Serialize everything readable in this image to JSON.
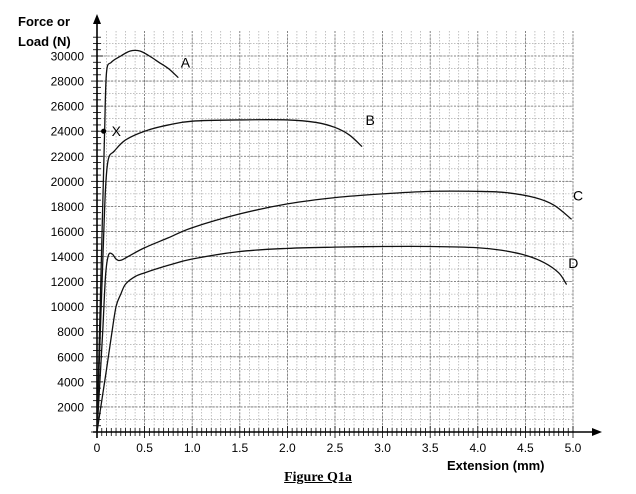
{
  "figure": {
    "caption": "Figure Q1a"
  },
  "chart_data": {
    "type": "line",
    "title": "",
    "ylabel_line1": "Force or",
    "ylabel_line2": "Load (N)",
    "xlabel": "Extension (mm)",
    "xlim": [
      0,
      5.0
    ],
    "ylim": [
      0,
      31000
    ],
    "x_ticks": [
      0,
      0.5,
      1.0,
      1.5,
      2.0,
      2.5,
      3.0,
      3.5,
      4.0,
      4.5,
      5.0
    ],
    "x_tick_labels": [
      "0",
      "0.5",
      "1.0",
      "1.5",
      "2.0",
      "2.5",
      "3.0",
      "3.5",
      "4.0",
      "4.5",
      "5.0"
    ],
    "y_ticks": [
      2000,
      4000,
      6000,
      8000,
      10000,
      12000,
      14000,
      16000,
      18000,
      20000,
      22000,
      24000,
      26000,
      28000,
      30000
    ],
    "y_tick_labels": [
      "2000",
      "4000",
      "6000",
      "8000",
      "10000",
      "12000",
      "14000",
      "16000",
      "18000",
      "20000",
      "22000",
      "24000",
      "26000",
      "28000",
      "30000"
    ],
    "grid": true,
    "series": [
      {
        "name": "A",
        "x": [
          0,
          0.03,
          0.06,
          0.08,
          0.1,
          0.15,
          0.25,
          0.35,
          0.45,
          0.55,
          0.65,
          0.75,
          0.85
        ],
        "y": [
          0,
          9000,
          18000,
          24000,
          28700,
          29500,
          30000,
          30400,
          30400,
          30000,
          29500,
          29000,
          28300
        ]
      },
      {
        "name": "B",
        "x": [
          0,
          0.03,
          0.06,
          0.09,
          0.12,
          0.18,
          0.3,
          0.5,
          0.75,
          1.0,
          1.5,
          2.0,
          2.3,
          2.5,
          2.65,
          2.78
        ],
        "y": [
          0,
          7000,
          13500,
          19500,
          21800,
          22400,
          23300,
          24000,
          24500,
          24800,
          24900,
          24900,
          24700,
          24300,
          23700,
          22800
        ]
      },
      {
        "name": "C",
        "x": [
          0,
          0.03,
          0.06,
          0.09,
          0.12,
          0.16,
          0.2,
          0.25,
          0.35,
          0.5,
          0.75,
          1.0,
          1.5,
          2.0,
          2.5,
          3.0,
          3.5,
          4.0,
          4.3,
          4.6,
          4.8,
          4.98
        ],
        "y": [
          0,
          4000,
          8000,
          12500,
          14100,
          14200,
          13800,
          13700,
          14100,
          14700,
          15500,
          16300,
          17400,
          18200,
          18700,
          19000,
          19200,
          19200,
          19100,
          18700,
          18100,
          17000
        ]
      },
      {
        "name": "D",
        "x": [
          0,
          0.05,
          0.1,
          0.15,
          0.2,
          0.25,
          0.3,
          0.4,
          0.5,
          0.75,
          1.0,
          1.5,
          2.0,
          2.5,
          3.0,
          3.5,
          4.0,
          4.25,
          4.5,
          4.7,
          4.85,
          4.93
        ],
        "y": [
          0,
          2500,
          5000,
          7600,
          10000,
          11000,
          11800,
          12400,
          12700,
          13300,
          13800,
          14400,
          14650,
          14750,
          14800,
          14800,
          14700,
          14500,
          14100,
          13500,
          12700,
          11800
        ]
      }
    ],
    "annotations": [
      {
        "label": "X",
        "x": 0.07,
        "y": 24000,
        "marker": true
      },
      {
        "label": "A",
        "x": 0.88,
        "y": 28600
      },
      {
        "label": "B",
        "x": 2.82,
        "y": 24000
      },
      {
        "label": "C",
        "x": 5.0,
        "y": 18000
      },
      {
        "label": "D",
        "x": 4.95,
        "y": 12600
      }
    ]
  }
}
